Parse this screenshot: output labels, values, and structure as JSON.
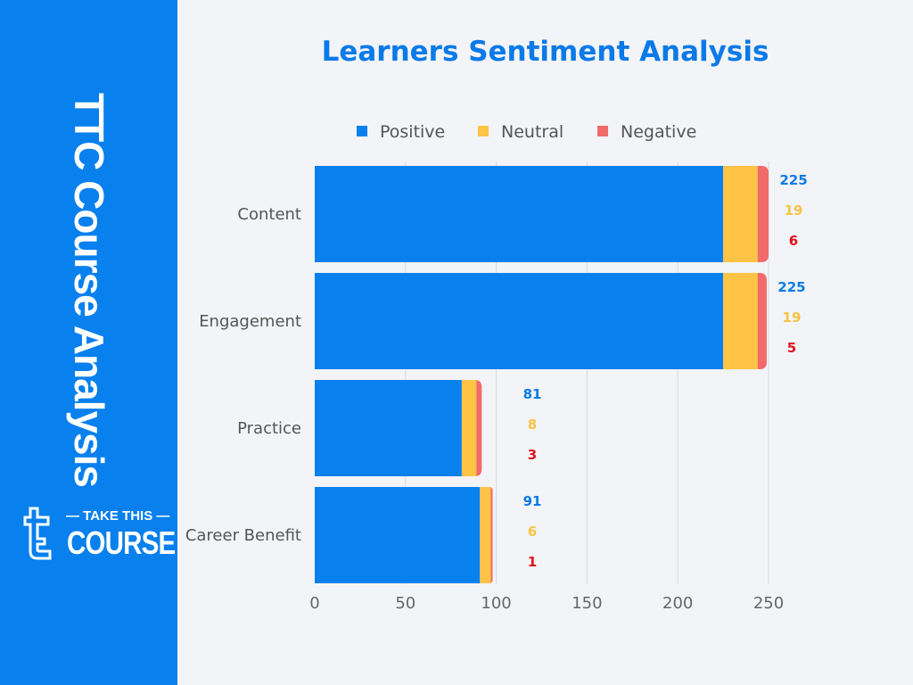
{
  "sidebar": {
    "title": "TTC Course Analysis",
    "logo_text": [
      "— TAKE THIS —",
      "COURSE"
    ]
  },
  "chart_data": {
    "type": "bar",
    "orientation": "horizontal",
    "stacked": true,
    "title": "Learners Sentiment Analysis",
    "categories": [
      "Content",
      "Engagement",
      "Practice",
      "Career Benefit"
    ],
    "series": [
      {
        "name": "Positive",
        "color": "#0880ee",
        "label_color": "#0a7ae8",
        "values": [
          225,
          225,
          81,
          91
        ]
      },
      {
        "name": "Neutral",
        "color": "#ffc445",
        "label_color": "#f7c244",
        "values": [
          19,
          19,
          8,
          6
        ]
      },
      {
        "name": "Negative",
        "color": "#f26b6b",
        "label_color": "#e0111b",
        "values": [
          6,
          5,
          3,
          1
        ]
      }
    ],
    "xlim": [
      0,
      250
    ],
    "xticks": [
      "0",
      "50",
      "100",
      "150",
      "200",
      "250"
    ],
    "grid": true,
    "legend": "top"
  }
}
